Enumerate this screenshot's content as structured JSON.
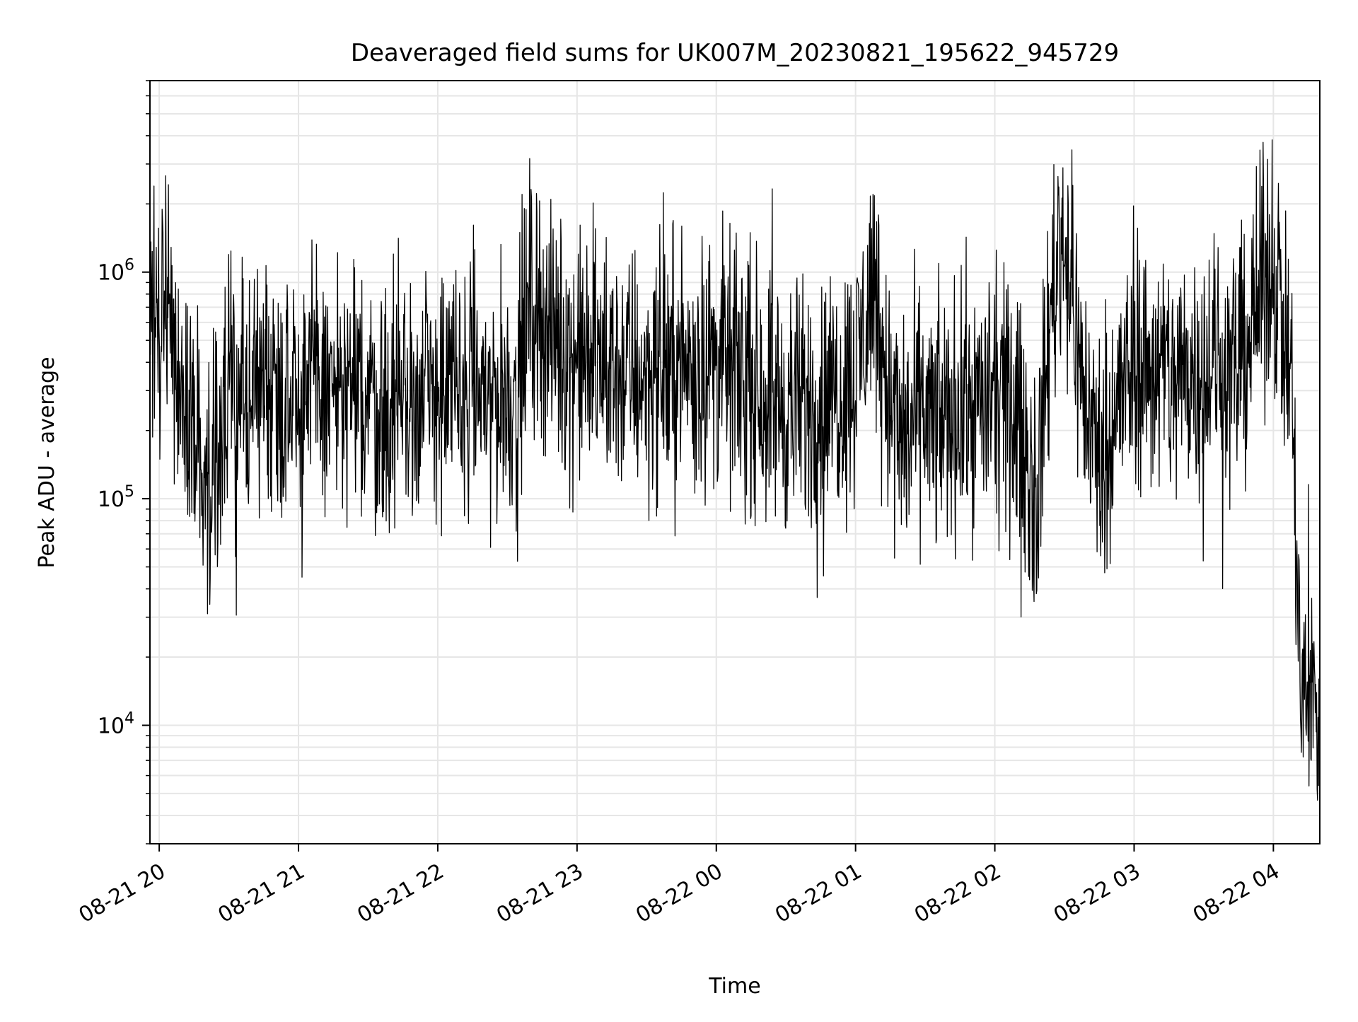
{
  "chart_data": {
    "type": "line",
    "title": "Deaveraged field sums for UK007M_20230821_195622_945729",
    "xlabel": "Time",
    "ylabel": "Peak ADU - average",
    "yscale": "log",
    "grid": true,
    "legend": "none",
    "line_color": "#000000",
    "grid_color": "#e6e6e6",
    "xlim": [
      "2023-08-21 19:56",
      "2023-08-22 04:20"
    ],
    "ylim": [
      3000,
      7000000
    ],
    "x_ticks": [
      {
        "value": "2023-08-21 20:00",
        "label": "08-21 20"
      },
      {
        "value": "2023-08-21 21:00",
        "label": "08-21 21"
      },
      {
        "value": "2023-08-21 22:00",
        "label": "08-21 22"
      },
      {
        "value": "2023-08-21 23:00",
        "label": "08-21 23"
      },
      {
        "value": "2023-08-22 00:00",
        "label": "08-22 00"
      },
      {
        "value": "2023-08-22 01:00",
        "label": "08-22 01"
      },
      {
        "value": "2023-08-22 02:00",
        "label": "08-22 02"
      },
      {
        "value": "2023-08-22 03:00",
        "label": "08-22 03"
      },
      {
        "value": "2023-08-22 04:00",
        "label": "08-22 04"
      }
    ],
    "y_ticks": [
      {
        "value": 10000,
        "base": "10",
        "exp": "4"
      },
      {
        "value": 100000,
        "base": "10",
        "exp": "5"
      },
      {
        "value": 1000000,
        "base": "10",
        "exp": "6"
      }
    ],
    "series": [
      {
        "name": "",
        "x": [
          "2023-08-21 19:56",
          "2023-08-21 20:00",
          "2023-08-21 20:04",
          "2023-08-21 20:08",
          "2023-08-21 20:10",
          "2023-08-21 20:14",
          "2023-08-21 20:18",
          "2023-08-21 20:22",
          "2023-08-21 20:30",
          "2023-08-21 20:40",
          "2023-08-21 20:50",
          "2023-08-21 21:00",
          "2023-08-21 21:15",
          "2023-08-21 21:30",
          "2023-08-21 21:35",
          "2023-08-21 21:45",
          "2023-08-21 22:00",
          "2023-08-21 22:15",
          "2023-08-21 22:30",
          "2023-08-21 22:35",
          "2023-08-21 22:40",
          "2023-08-21 22:50",
          "2023-08-21 23:00",
          "2023-08-21 23:15",
          "2023-08-21 23:30",
          "2023-08-21 23:45",
          "2023-08-22 00:00",
          "2023-08-22 00:15",
          "2023-08-22 00:30",
          "2023-08-22 00:45",
          "2023-08-22 01:00",
          "2023-08-22 01:08",
          "2023-08-22 01:14",
          "2023-08-22 01:18",
          "2023-08-22 01:22",
          "2023-08-22 01:30",
          "2023-08-22 01:33",
          "2023-08-22 01:45",
          "2023-08-22 02:00",
          "2023-08-22 02:10",
          "2023-08-22 02:18",
          "2023-08-22 02:25",
          "2023-08-22 02:30",
          "2023-08-22 02:38",
          "2023-08-22 02:45",
          "2023-08-22 03:00",
          "2023-08-22 03:15",
          "2023-08-22 03:30",
          "2023-08-22 03:45",
          "2023-08-22 04:00",
          "2023-08-22 04:05",
          "2023-08-22 04:08",
          "2023-08-22 04:10",
          "2023-08-22 04:12",
          "2023-08-22 04:15",
          "2023-08-22 04:20"
        ],
        "y": [
          500000,
          700000,
          900000,
          400000,
          300000,
          200000,
          150000,
          120000,
          250000,
          300000,
          320000,
          330000,
          300000,
          280000,
          250000,
          260000,
          300000,
          310000,
          280000,
          300000,
          800000,
          500000,
          420000,
          380000,
          350000,
          380000,
          420000,
          330000,
          250000,
          260000,
          350000,
          1000000,
          300000,
          200000,
          180000,
          260000,
          200000,
          250000,
          270000,
          230000,
          100000,
          900000,
          1500000,
          300000,
          150000,
          400000,
          350000,
          400000,
          370000,
          1200000,
          500000,
          300000,
          50000,
          12000,
          14000,
          12000
        ]
      }
    ]
  }
}
